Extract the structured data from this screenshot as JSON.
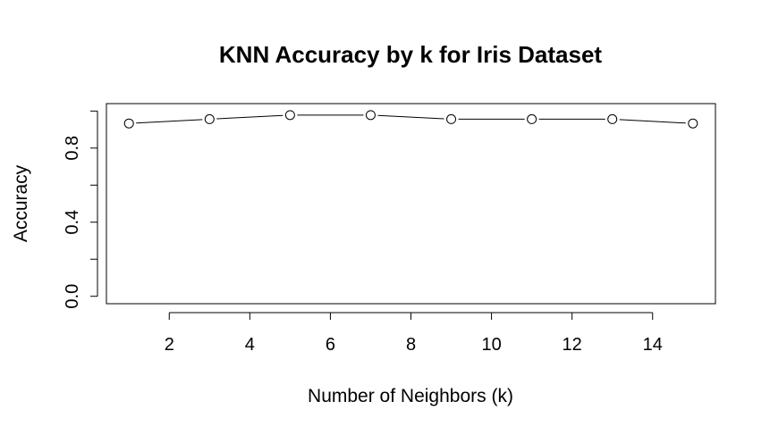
{
  "chart_data": {
    "type": "line",
    "title": "KNN Accuracy by k for Iris Dataset",
    "xlabel": "Number of Neighbors (k)",
    "ylabel": "Accuracy",
    "x": [
      1,
      3,
      5,
      7,
      9,
      11,
      13,
      15
    ],
    "series": [
      {
        "values": [
          0.933,
          0.956,
          0.978,
          0.978,
          0.956,
          0.956,
          0.956,
          0.933
        ]
      }
    ],
    "xlim": [
      0.44,
      15.56
    ],
    "ylim": [
      -0.04,
      1.04
    ],
    "xticks": [
      2,
      4,
      6,
      8,
      10,
      12,
      14
    ],
    "xtick_labels": [
      "2",
      "4",
      "6",
      "8",
      "10",
      "12",
      "14"
    ],
    "yticks": [
      0.0,
      0.2,
      0.4,
      0.6,
      0.8,
      1.0
    ],
    "ytick_labels": [
      "0.0",
      "",
      "0.4",
      "",
      "0.8",
      ""
    ],
    "marker": "open-circle",
    "line_style": "solid-with-gaps-at-points",
    "grid": false,
    "legend": "none"
  }
}
